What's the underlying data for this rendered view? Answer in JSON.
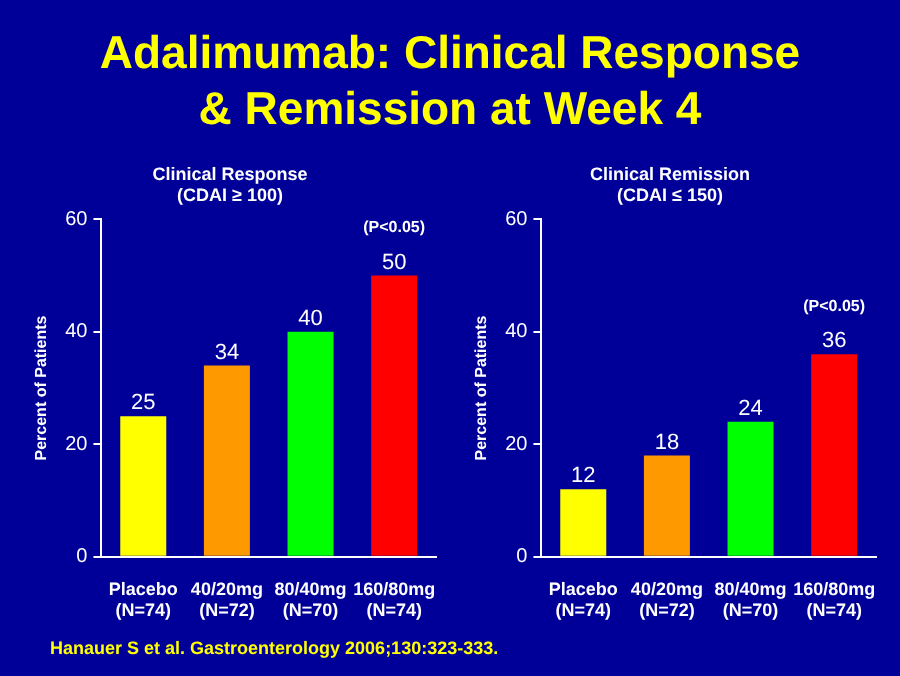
{
  "chart_data": [
    {
      "type": "bar",
      "title": "Adalimumab: Clinical Response\n& Remission at Week 4",
      "subtitle": "Clinical Response\n(CDAI ≥ 100)",
      "ylabel": "Percent of Patients",
      "categories": [
        "Placebo\n(N=74)",
        "40/20mg\n(N=72)",
        "80/40mg\n(N=70)",
        "160/80mg\n(N=74)"
      ],
      "values": [
        25,
        34,
        40,
        50
      ],
      "colors": [
        "#ffff00",
        "#ff9900",
        "#00ff00",
        "#ff0000"
      ],
      "ylim": [
        0,
        60
      ],
      "yticks": [
        0,
        20,
        40,
        60
      ],
      "data_labels": true,
      "legend": false,
      "annotations": [
        "(P<0.05)",
        "Hanauer S et al. Gastroenterology 2006;130:323-333."
      ]
    },
    {
      "type": "bar",
      "subtitle": "Clinical Remission\n(CDAI ≤ 150)",
      "ylabel": "Percent of Patients",
      "categories": [
        "Placebo\n(N=74)",
        "40/20mg\n(N=72)",
        "80/40mg\n(N=70)",
        "160/80mg\n(N=74)"
      ],
      "values": [
        12,
        18,
        24,
        36
      ],
      "colors": [
        "#ffff00",
        "#ff9900",
        "#00ff00",
        "#ff0000"
      ],
      "ylim": [
        0,
        60
      ],
      "yticks": [
        0,
        20,
        40,
        60
      ],
      "data_labels": true,
      "legend": false,
      "annotations": [
        "(P<0.05)"
      ]
    }
  ]
}
